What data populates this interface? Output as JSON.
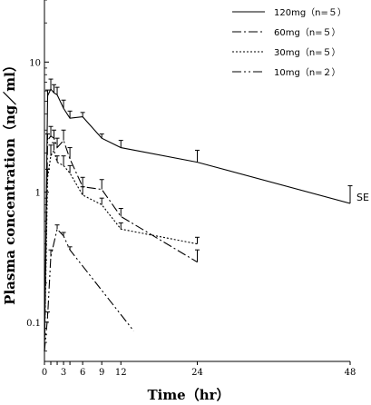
{
  "chart_data": {
    "type": "line",
    "xlabel": "Time（hr）",
    "ylabel": "Plasma concentration（ng／ml）",
    "x_scale": "linear",
    "y_scale": "log",
    "xlim": [
      0,
      48
    ],
    "ylim": [
      0.05,
      30
    ],
    "x_ticks": [
      0,
      1,
      2,
      3,
      4,
      6,
      9,
      12,
      24,
      48
    ],
    "x_tick_labels": [
      "0",
      "",
      "",
      "3",
      "",
      "6",
      "9",
      "12",
      "24",
      "48"
    ],
    "y_ticks": [
      0.1,
      1,
      10
    ],
    "y_tick_labels": [
      "0.1",
      "1",
      "10"
    ],
    "legend_position": "top-right",
    "se_label": "SE",
    "grid": false,
    "series": [
      {
        "name": "120mg（n=５）",
        "dash": "solid",
        "x": [
          0,
          0.5,
          1,
          1.5,
          2,
          3,
          4,
          6,
          9,
          12,
          24,
          48
        ],
        "y": [
          0.06,
          5.5,
          6.2,
          5.8,
          5.6,
          4.4,
          3.7,
          3.8,
          2.6,
          2.2,
          1.7,
          0.82
        ],
        "err": [
          0,
          0.6,
          1.2,
          0.9,
          0.8,
          0.7,
          0.5,
          0.3,
          0.2,
          0.3,
          0.4,
          0.3
        ]
      },
      {
        "name": "60mg（n=５）",
        "dash": "dashdot",
        "x": [
          0,
          0.5,
          1,
          1.5,
          2,
          3,
          4,
          6,
          9,
          12,
          24
        ],
        "y": [
          0.06,
          2.5,
          2.7,
          2.6,
          2.2,
          2.5,
          1.8,
          1.1,
          1.05,
          0.65,
          0.29
        ],
        "err": [
          0,
          0.3,
          0.5,
          0.4,
          0.4,
          0.5,
          0.4,
          0.2,
          0.2,
          0.1,
          0.07
        ]
      },
      {
        "name": "30mg（n=５）",
        "dash": "dotted",
        "x": [
          0,
          0.5,
          1,
          1.5,
          2,
          3,
          4,
          6,
          9,
          12,
          24
        ],
        "y": [
          0.06,
          1.3,
          1.9,
          2.1,
          1.7,
          1.6,
          1.4,
          0.95,
          0.8,
          0.52,
          0.4
        ],
        "err": [
          0,
          0.2,
          0.4,
          0.3,
          0.2,
          0.3,
          0.2,
          0.15,
          0.1,
          0.06,
          0.05
        ]
      },
      {
        "name": "10mg（n=２）",
        "dash": "dashdotdot",
        "x": [
          0,
          0.5,
          1,
          2,
          3,
          4,
          14
        ],
        "y": [
          0.06,
          0.11,
          0.32,
          0.52,
          0.46,
          0.36,
          0.086
        ],
        "err": [
          0,
          0.01,
          0.04,
          0.04,
          0.03,
          0.02,
          0
        ]
      }
    ]
  }
}
